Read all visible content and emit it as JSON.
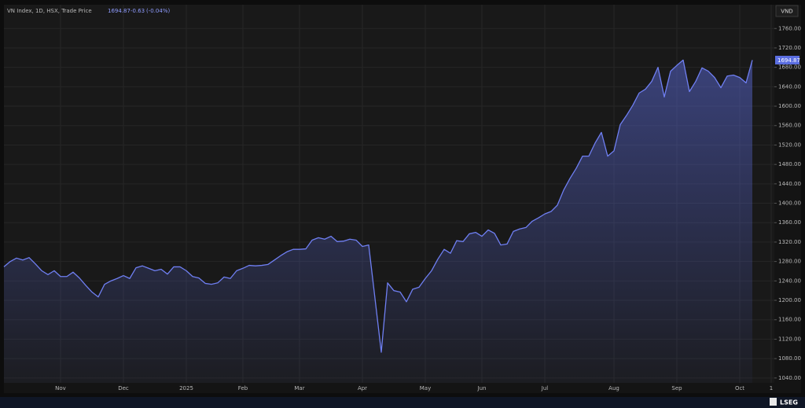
{
  "chart_data": {
    "type": "line",
    "title": "VN Index, 1D, HSX, Trade Price",
    "change": -0.63,
    "change_label": "(-0.04%)",
    "currency": "VND",
    "brand": "LSEG",
    "categories": [
      null,
      null,
      null,
      null,
      null,
      null,
      null,
      null,
      null,
      "Nov",
      null,
      null,
      null,
      null,
      null,
      null,
      null,
      null,
      null,
      "Dec",
      null,
      null,
      null,
      null,
      null,
      null,
      null,
      null,
      null,
      "2025",
      null,
      null,
      null,
      null,
      null,
      null,
      null,
      null,
      "Feb",
      null,
      null,
      null,
      null,
      null,
      null,
      null,
      null,
      "Mar",
      null,
      null,
      null,
      null,
      null,
      null,
      null,
      null,
      null,
      "Apr",
      null,
      null,
      null,
      null,
      null,
      null,
      null,
      null,
      null,
      "May",
      null,
      null,
      null,
      null,
      null,
      null,
      null,
      null,
      "Jun",
      null,
      null,
      null,
      null,
      null,
      null,
      null,
      null,
      null,
      "Jul",
      null,
      null,
      null,
      null,
      null,
      null,
      null,
      null,
      null,
      null,
      "Aug",
      null,
      null,
      null,
      null,
      null,
      null,
      null,
      null,
      null,
      "Sep",
      null,
      null,
      null,
      null,
      null,
      null,
      null,
      null,
      null,
      "Oct",
      null,
      null,
      null,
      null,
      "1"
    ],
    "series": [
      {
        "name": "VN Index",
        "color": "#6f7ff2",
        "values": [
          1269,
          1280,
          1287,
          1283,
          1288,
          1275,
          1261,
          1253,
          1261,
          1249,
          1249,
          1258,
          1246,
          1231,
          1217,
          1207,
          1233,
          1240,
          1245,
          1251,
          1245,
          1267,
          1271,
          1266,
          1261,
          1264,
          1254,
          1269,
          1269,
          1261,
          1249,
          1246,
          1235,
          1233,
          1236,
          1248,
          1245,
          1261,
          1266,
          1272,
          1271,
          1272,
          1274,
          1283,
          1292,
          1300,
          1305,
          1305,
          1306,
          1324,
          1329,
          1326,
          1332,
          1321,
          1322,
          1326,
          1324,
          1311,
          1314,
          1204,
          1093,
          1236,
          1220,
          1217,
          1197,
          1223,
          1227,
          1245,
          1261,
          1285,
          1305,
          1297,
          1323,
          1321,
          1337,
          1340,
          1332,
          1345,
          1338,
          1314,
          1316,
          1342,
          1347,
          1350,
          1363,
          1370,
          1378,
          1383,
          1396,
          1427,
          1451,
          1472,
          1497,
          1497,
          1524,
          1546,
          1497,
          1508,
          1562,
          1581,
          1602,
          1627,
          1635,
          1651,
          1680,
          1619,
          1672,
          1684,
          1695,
          1630,
          1651,
          1679,
          1672,
          1659,
          1638,
          1662,
          1664,
          1659,
          1648,
          1694.87,
          null,
          null,
          null
        ]
      }
    ],
    "ylim": [
      1030,
      1809
    ],
    "yticks": [
      {
        "value": 1040,
        "label": "1040.00"
      },
      {
        "value": 1080,
        "label": "1080.00"
      },
      {
        "value": 1120,
        "label": "1120.00"
      },
      {
        "value": 1160,
        "label": "1160.00"
      },
      {
        "value": 1200,
        "label": "1200.00"
      },
      {
        "value": 1240,
        "label": "1240.00"
      },
      {
        "value": 1280,
        "label": "1280.00"
      },
      {
        "value": 1320,
        "label": "1320.00"
      },
      {
        "value": 1360,
        "label": "1360.00"
      },
      {
        "value": 1400,
        "label": "1400.00"
      },
      {
        "value": 1440,
        "label": "1440.00"
      },
      {
        "value": 1480,
        "label": "1480.00"
      },
      {
        "value": 1520,
        "label": "1520.00"
      },
      {
        "value": 1560,
        "label": "1560.00"
      },
      {
        "value": 1600,
        "label": "1600.00"
      },
      {
        "value": 1640,
        "label": "1640.00"
      },
      {
        "value": 1680,
        "label": "1680.00"
      },
      {
        "value": 1720,
        "label": "1720.00"
      },
      {
        "value": 1760,
        "label": "1760.00"
      }
    ],
    "grid": true
  }
}
